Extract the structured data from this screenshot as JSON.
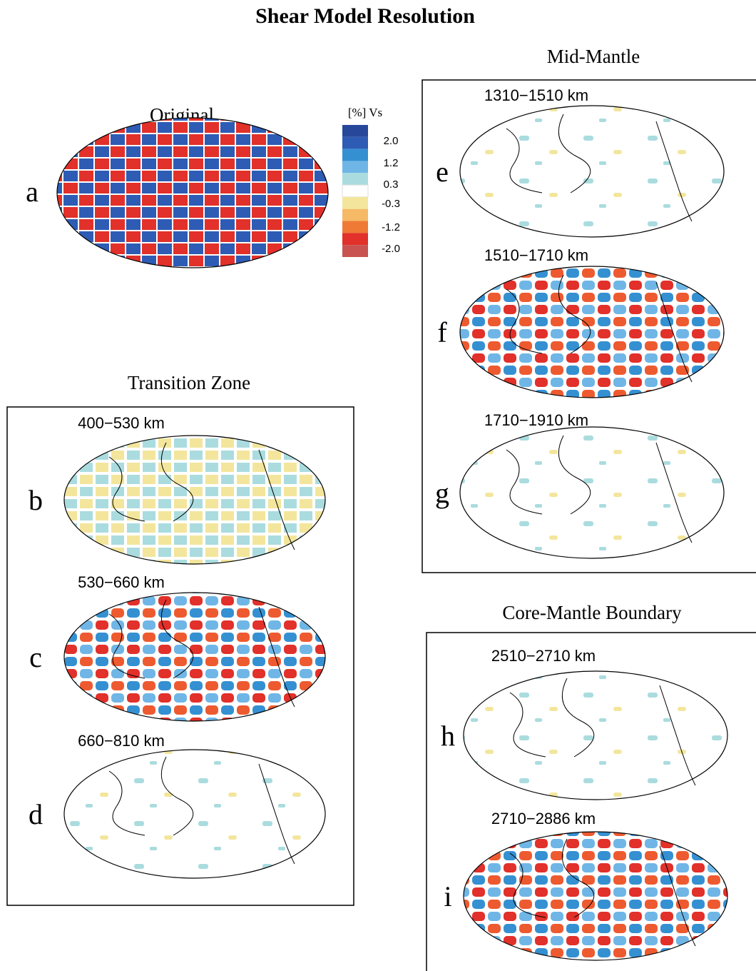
{
  "title": "Shear Model Resolution",
  "original": {
    "heading": "Original",
    "letter": "a"
  },
  "legend": {
    "title": "[%] Vs",
    "labels": [
      "2.0",
      "1.2",
      "0.3",
      "-0.3",
      "-1.2",
      "-2.0"
    ],
    "colors": [
      "#27479b",
      "#2e5cb5",
      "#3590d2",
      "#6fb6e6",
      "#aadcdf",
      "#ffffff",
      "#f3e69c",
      "#f6b965",
      "#ee7a35",
      "#e2302a",
      "#c95350"
    ]
  },
  "groups": [
    {
      "heading": "Transition Zone",
      "panels": [
        {
          "letter": "b",
          "depth": "400−530  km"
        },
        {
          "letter": "c",
          "depth": "530−660  km"
        },
        {
          "letter": "d",
          "depth": "660−810  km"
        }
      ]
    },
    {
      "heading": "Mid-Mantle",
      "panels": [
        {
          "letter": "e",
          "depth": "1310−1510  km"
        },
        {
          "letter": "f",
          "depth": "1510−1710  km"
        },
        {
          "letter": "g",
          "depth": "1710−1910  km"
        }
      ]
    },
    {
      "heading": "Core-Mantle Boundary",
      "panels": [
        {
          "letter": "h",
          "depth": "2510−2710  km"
        },
        {
          "letter": "i",
          "depth": "2710−2886  km"
        }
      ]
    }
  ]
}
